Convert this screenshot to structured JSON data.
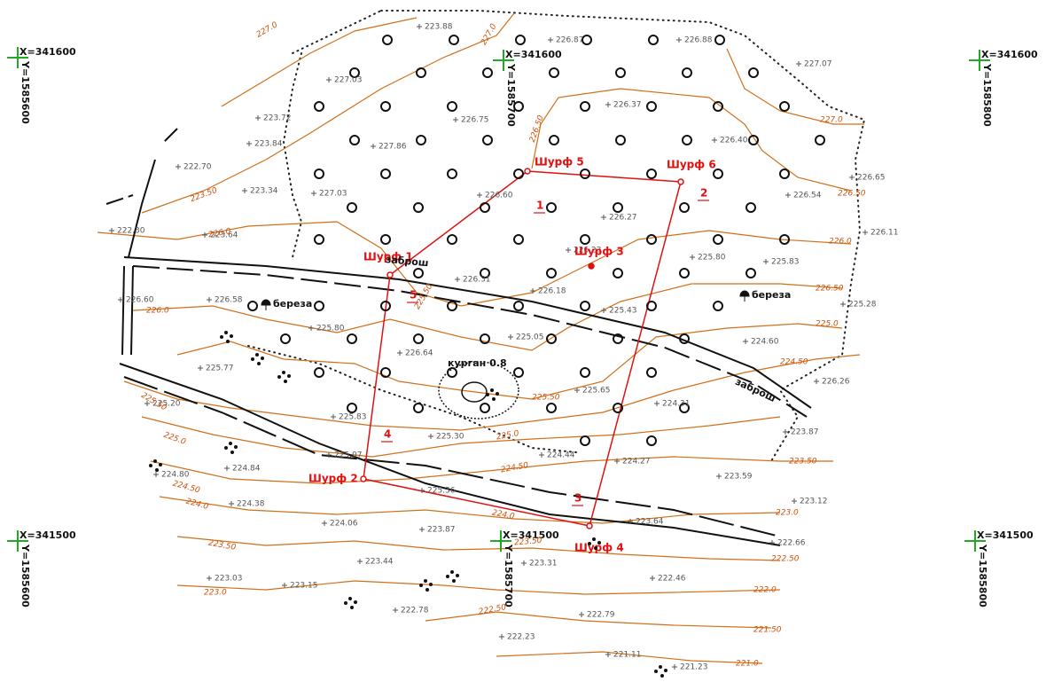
{
  "grid_marks": [
    {
      "x": "X=341600",
      "y": "Y=1585600"
    },
    {
      "x": "X=341600",
      "y": "Y=1585700"
    },
    {
      "x": "X=341600",
      "y": "Y=1585800"
    },
    {
      "x": "X=341500",
      "y": "Y=1585600"
    },
    {
      "x": "X=341500",
      "y": "Y=1585700"
    },
    {
      "x": "X=341500",
      "y": "Y=1585800"
    }
  ],
  "pits": [
    "Шурф 1",
    "Шурф 2",
    "Шурф 3",
    "Шурф 4",
    "Шурф 5",
    "Шурф 6"
  ],
  "vertices": [
    "1",
    "2",
    "3",
    "4",
    "5"
  ],
  "spot_heights": [
    "223.88",
    "226.87",
    "226.88",
    "227.03",
    "223.72",
    "226.75",
    "226.37",
    "223.84",
    "227.86",
    "227.07",
    "226.40",
    "226.65",
    "222.70",
    "223.34",
    "227.03",
    "226.60",
    "226.27",
    "226.54",
    "222.30",
    "223.64",
    "226.23",
    "225.80",
    "225.83",
    "226.11",
    "226.31",
    "226.18",
    "226.60",
    "226.58",
    "225.43",
    "225.28",
    "225.80",
    "225.05",
    "224.60",
    "225.77",
    "226.64",
    "225.65",
    "226.26",
    "225.20",
    "225.83",
    "224.31",
    "225.30",
    "223.87",
    "225.07",
    "224.44",
    "224.27",
    "224.84",
    "224.80",
    "225.36",
    "223.59",
    "223.12",
    "224.38",
    "224.06",
    "223.87",
    "223.64",
    "222.66",
    "223.44",
    "223.31",
    "223.03",
    "222.46",
    "223.15",
    "222.78",
    "222.79",
    "222.23",
    "221.11",
    "221.23"
  ],
  "contour_labels": [
    "227.0",
    "227.0",
    "226.50",
    "227.0",
    "226.50",
    "223.50",
    "226.0",
    "226.0",
    "225.50",
    "226.50",
    "225.0",
    "226.0",
    "224.50",
    "225.50",
    "225.50",
    "225.0",
    "224.50",
    "225.0",
    "223.50",
    "224.50",
    "224.0",
    "224.0",
    "223.0",
    "223.50",
    "223.50",
    "222.50",
    "223.0",
    "222.0",
    "222.50",
    "221.50",
    "221.0"
  ],
  "features": {
    "trees": [
      "береза",
      "береза"
    ],
    "roads": [
      "заброш",
      "заброш"
    ],
    "mound": "курган 0.8"
  }
}
